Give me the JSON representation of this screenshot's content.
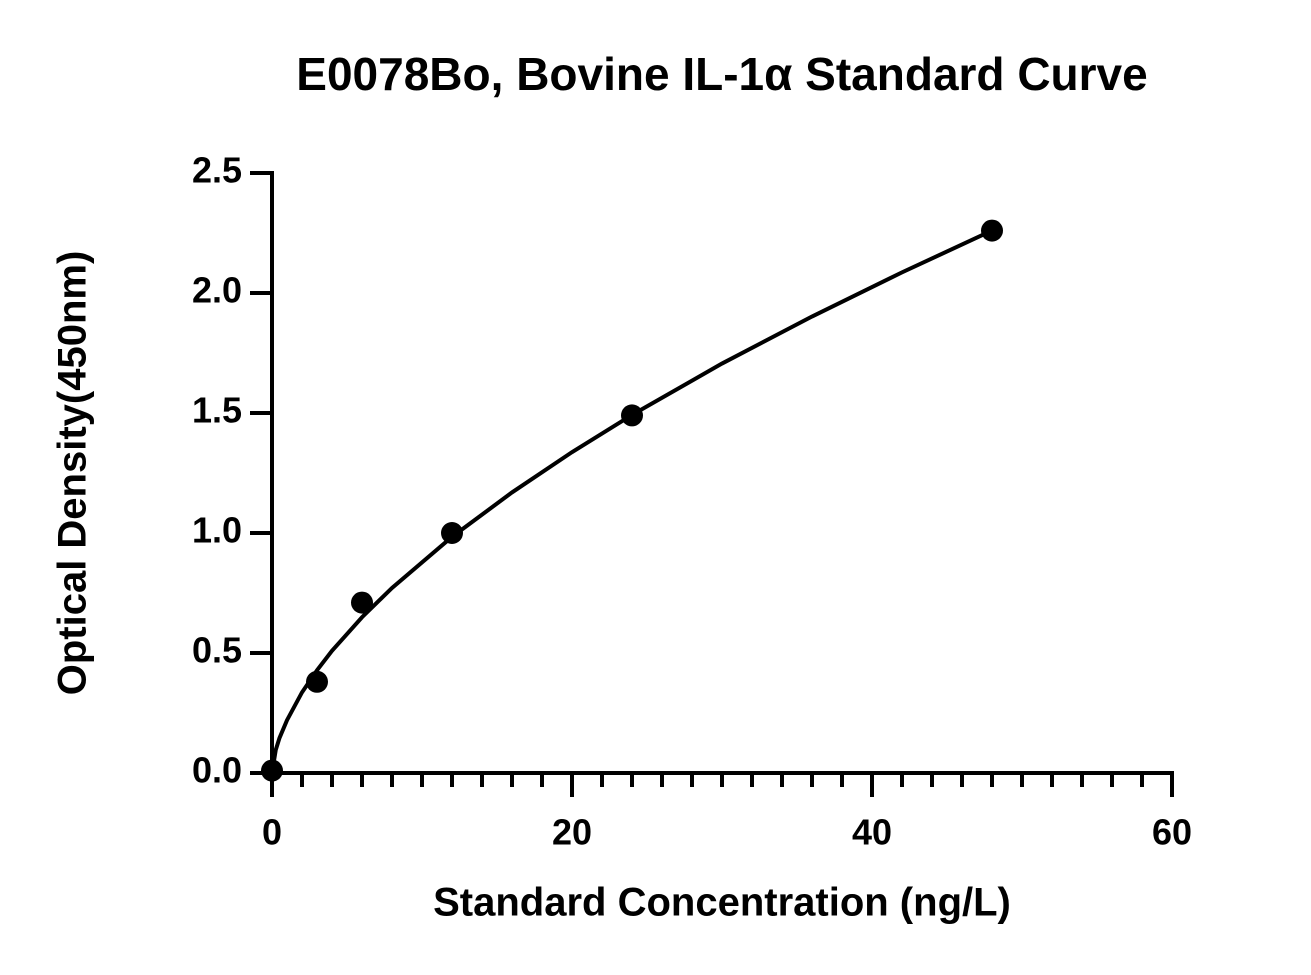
{
  "chart_data": {
    "type": "scatter",
    "title": "E0078Bo, Bovine IL-1α Standard Curve",
    "x_label": "Standard Concentration (ng/L)",
    "y_label": "Optical Density(450nm)",
    "x": [
      0,
      3,
      6,
      12,
      24,
      48
    ],
    "values": [
      0.01,
      0.38,
      0.71,
      1.0,
      1.49,
      2.26
    ],
    "color": "#000000",
    "fit": {
      "x": [
        0,
        0.25,
        0.5,
        1,
        2,
        3,
        4,
        6,
        8,
        12,
        16,
        20,
        24,
        30,
        36,
        42,
        48
      ],
      "values": [
        0,
        0.096,
        0.146,
        0.22,
        0.336,
        0.428,
        0.509,
        0.649,
        0.771,
        0.984,
        1.169,
        1.337,
        1.492,
        1.706,
        1.902,
        2.086,
        2.26
      ]
    },
    "xlim": [
      0,
      60
    ],
    "xticks": [
      0,
      20,
      40,
      60
    ],
    "xminorticks": [
      2,
      4,
      6,
      8,
      10,
      12,
      14,
      16,
      18,
      22,
      24,
      26,
      28,
      30,
      32,
      34,
      36,
      38,
      42,
      44,
      46,
      48,
      50,
      52,
      54,
      56,
      58
    ],
    "ylim": [
      0,
      2.5
    ],
    "yticks": [
      {
        "value": 0,
        "label": "0.0"
      },
      0.5,
      {
        "value": 1,
        "label": "1.0"
      },
      1.5,
      {
        "value": 2,
        "label": "2.0"
      },
      2.5
    ],
    "grid": false
  }
}
